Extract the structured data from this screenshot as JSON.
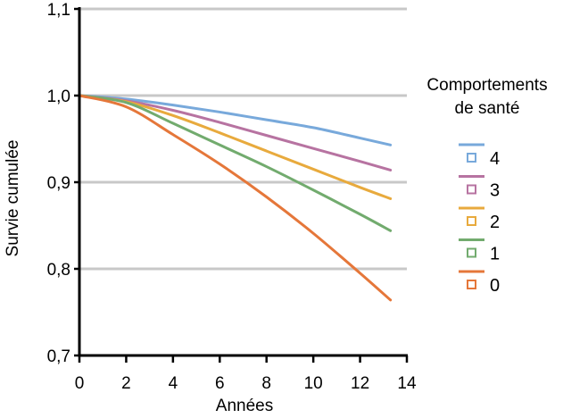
{
  "chart_data": {
    "type": "line",
    "title": "",
    "xlabel": "Années",
    "ylabel": "Survie cumulée",
    "xlim": [
      0,
      14
    ],
    "ylim": [
      0.7,
      1.1
    ],
    "x_ticks": [
      0,
      2,
      4,
      6,
      8,
      10,
      12,
      14
    ],
    "x_tick_labels": [
      "0",
      "2",
      "4",
      "6",
      "8",
      "10",
      "12",
      "14"
    ],
    "y_ticks": [
      0.7,
      0.8,
      0.9,
      1.0,
      1.1
    ],
    "y_tick_labels": [
      "0,7",
      "0,8",
      "0,9",
      "1,0",
      "1,1"
    ],
    "grid": "horizontal",
    "legend": {
      "title": "Comportements de santé",
      "title_lines": [
        "Comportements",
        "de santé"
      ],
      "placement": "right"
    },
    "series": [
      {
        "name": "4",
        "color": "#78a9db",
        "x": [
          0,
          2,
          4,
          6,
          8,
          10,
          12,
          13.3
        ],
        "y": [
          1.0,
          0.996,
          0.989,
          0.981,
          0.972,
          0.963,
          0.951,
          0.943
        ]
      },
      {
        "name": "3",
        "color": "#b773a1",
        "x": [
          0,
          2,
          4,
          6,
          8,
          10,
          12,
          13.3
        ],
        "y": [
          1.0,
          0.994,
          0.983,
          0.969,
          0.954,
          0.939,
          0.924,
          0.914
        ]
      },
      {
        "name": "2",
        "color": "#e8aa3d",
        "x": [
          0,
          2,
          4,
          6,
          8,
          10,
          12,
          13.3
        ],
        "y": [
          1.0,
          0.993,
          0.977,
          0.957,
          0.936,
          0.915,
          0.894,
          0.881
        ]
      },
      {
        "name": "1",
        "color": "#72ab6e",
        "x": [
          0,
          2,
          4,
          6,
          8,
          10,
          12,
          13.3
        ],
        "y": [
          1.0,
          0.992,
          0.968,
          0.943,
          0.918,
          0.891,
          0.863,
          0.844
        ]
      },
      {
        "name": "0",
        "color": "#e5773a",
        "x": [
          0,
          2,
          4,
          6,
          8,
          10,
          12,
          13.3
        ],
        "y": [
          1.0,
          0.987,
          0.955,
          0.921,
          0.883,
          0.841,
          0.795,
          0.764
        ]
      }
    ]
  }
}
